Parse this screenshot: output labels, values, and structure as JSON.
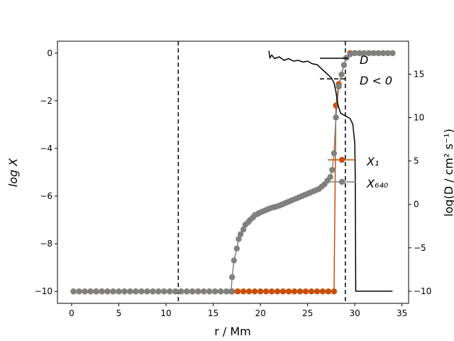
{
  "chart_data": {
    "type": "line",
    "xlabel": "r / Mm",
    "ylabel_left": "log X",
    "ylabel_right": "log(D / cm² s⁻¹)",
    "xlim": [
      -1.5,
      35.7
    ],
    "ylim_left": [
      -10.5,
      0.5
    ],
    "ylim_right": [
      -11.4,
      18.8
    ],
    "x_ticks": [
      0,
      5,
      10,
      15,
      20,
      25,
      30,
      35
    ],
    "y_ticks_left": [
      0,
      -2,
      -4,
      -6,
      -8,
      -10
    ],
    "y_ticks_right": [
      15,
      10,
      5,
      0,
      -5,
      -10
    ],
    "vlines": [
      11.3,
      29.0
    ],
    "colors": {
      "x1": "#c84f0a",
      "x640": "#808080",
      "d": "#000000"
    },
    "legend": {
      "D": "D",
      "Dneg": "D < 0",
      "X1": "X₁",
      "X640": "X₆₄₀"
    },
    "series": [
      {
        "name": "X₁",
        "axis": "left",
        "color": "#c84f0a",
        "points": [
          [
            0.2,
            -10
          ],
          [
            0.8,
            -10
          ],
          [
            1.4,
            -10
          ],
          [
            2.0,
            -10
          ],
          [
            2.6,
            -10
          ],
          [
            3.2,
            -10
          ],
          [
            3.8,
            -10
          ],
          [
            4.4,
            -10
          ],
          [
            5.0,
            -10
          ],
          [
            5.6,
            -10
          ],
          [
            6.2,
            -10
          ],
          [
            6.8,
            -10
          ],
          [
            7.4,
            -10
          ],
          [
            8.0,
            -10
          ],
          [
            8.6,
            -10
          ],
          [
            9.2,
            -10
          ],
          [
            9.8,
            -10
          ],
          [
            10.4,
            -10
          ],
          [
            11.0,
            -10
          ],
          [
            11.6,
            -10
          ],
          [
            12.2,
            -10
          ],
          [
            12.8,
            -10
          ],
          [
            13.4,
            -10
          ],
          [
            14.0,
            -10
          ],
          [
            14.6,
            -10
          ],
          [
            15.2,
            -10
          ],
          [
            15.8,
            -10
          ],
          [
            16.4,
            -10
          ],
          [
            17.0,
            -10
          ],
          [
            17.6,
            -10
          ],
          [
            18.2,
            -10
          ],
          [
            18.8,
            -10
          ],
          [
            19.4,
            -10
          ],
          [
            20.0,
            -10
          ],
          [
            20.6,
            -10
          ],
          [
            21.2,
            -10
          ],
          [
            21.8,
            -10
          ],
          [
            22.4,
            -10
          ],
          [
            23.0,
            -10
          ],
          [
            23.6,
            -10
          ],
          [
            24.2,
            -10
          ],
          [
            24.8,
            -10
          ],
          [
            25.4,
            -10
          ],
          [
            26.0,
            -10
          ],
          [
            26.6,
            -10
          ],
          [
            27.2,
            -10
          ],
          [
            27.8,
            -10
          ],
          [
            28.0,
            -2.2
          ],
          [
            28.3,
            -1.3
          ],
          [
            28.6,
            -0.9
          ],
          [
            28.85,
            -0.5
          ],
          [
            29.1,
            -0.2
          ],
          [
            29.5,
            0
          ],
          [
            30.0,
            0
          ],
          [
            30.5,
            0
          ],
          [
            31.0,
            0
          ],
          [
            31.5,
            0
          ],
          [
            32.0,
            0
          ],
          [
            32.5,
            0
          ],
          [
            33.0,
            0
          ],
          [
            33.5,
            0
          ],
          [
            34.0,
            0
          ]
        ]
      },
      {
        "name": "X₆₄₀",
        "axis": "left",
        "color": "#808080",
        "points": [
          [
            0.2,
            -10
          ],
          [
            0.8,
            -10
          ],
          [
            1.4,
            -10
          ],
          [
            2.0,
            -10
          ],
          [
            2.6,
            -10
          ],
          [
            3.2,
            -10
          ],
          [
            3.8,
            -10
          ],
          [
            4.4,
            -10
          ],
          [
            5.0,
            -10
          ],
          [
            5.6,
            -10
          ],
          [
            6.2,
            -10
          ],
          [
            6.8,
            -10
          ],
          [
            7.4,
            -10
          ],
          [
            8.0,
            -10
          ],
          [
            8.6,
            -10
          ],
          [
            9.2,
            -10
          ],
          [
            9.8,
            -10
          ],
          [
            10.4,
            -10
          ],
          [
            11.0,
            -10
          ],
          [
            11.6,
            -10
          ],
          [
            12.2,
            -10
          ],
          [
            12.8,
            -10
          ],
          [
            13.4,
            -10
          ],
          [
            14.0,
            -10
          ],
          [
            14.6,
            -10
          ],
          [
            15.2,
            -10
          ],
          [
            15.8,
            -10
          ],
          [
            16.4,
            -10
          ],
          [
            16.9,
            -10
          ],
          [
            17.0,
            -9.4
          ],
          [
            17.2,
            -8.7
          ],
          [
            17.5,
            -8.2
          ],
          [
            17.7,
            -7.8
          ],
          [
            17.9,
            -7.6
          ],
          [
            18.2,
            -7.4
          ],
          [
            18.4,
            -7.2
          ],
          [
            18.7,
            -7.1
          ],
          [
            18.9,
            -7.0
          ],
          [
            19.2,
            -6.9
          ],
          [
            19.4,
            -6.8
          ],
          [
            19.7,
            -6.75
          ],
          [
            19.9,
            -6.7
          ],
          [
            20.2,
            -6.65
          ],
          [
            20.5,
            -6.6
          ],
          [
            20.8,
            -6.55
          ],
          [
            21.1,
            -6.5
          ],
          [
            21.4,
            -6.47
          ],
          [
            21.7,
            -6.44
          ],
          [
            22.0,
            -6.4
          ],
          [
            22.3,
            -6.35
          ],
          [
            22.6,
            -6.3
          ],
          [
            22.9,
            -6.25
          ],
          [
            23.2,
            -6.2
          ],
          [
            23.5,
            -6.15
          ],
          [
            23.8,
            -6.1
          ],
          [
            24.1,
            -6.05
          ],
          [
            24.4,
            -6.0
          ],
          [
            24.7,
            -5.95
          ],
          [
            25.0,
            -5.9
          ],
          [
            25.3,
            -5.85
          ],
          [
            25.6,
            -5.8
          ],
          [
            25.9,
            -5.75
          ],
          [
            26.2,
            -5.7
          ],
          [
            26.5,
            -5.6
          ],
          [
            26.8,
            -5.5
          ],
          [
            27.1,
            -5.35
          ],
          [
            27.4,
            -5.2
          ],
          [
            27.6,
            -4.9
          ],
          [
            27.8,
            -4.2
          ],
          [
            28.0,
            -2.7
          ],
          [
            28.3,
            -1.4
          ],
          [
            28.6,
            -0.9
          ],
          [
            28.85,
            -0.5
          ],
          [
            29.1,
            -0.2
          ],
          [
            29.5,
            -0.05
          ],
          [
            30.0,
            0
          ],
          [
            30.5,
            0
          ],
          [
            31.0,
            0
          ],
          [
            31.5,
            0
          ],
          [
            32.0,
            0
          ],
          [
            32.5,
            0
          ],
          [
            33.0,
            0
          ],
          [
            33.5,
            0
          ],
          [
            34.0,
            0
          ]
        ]
      },
      {
        "name": "D",
        "axis": "right",
        "color": "#000000",
        "points": [
          [
            20.9,
            17.7
          ],
          [
            21.0,
            16.9
          ],
          [
            21.2,
            17.2
          ],
          [
            21.5,
            16.8
          ],
          [
            22.0,
            17.0
          ],
          [
            22.5,
            16.6
          ],
          [
            23.0,
            16.8
          ],
          [
            23.5,
            16.5
          ],
          [
            24.0,
            16.6
          ],
          [
            24.5,
            16.4
          ],
          [
            25.0,
            16.5
          ],
          [
            25.5,
            16.2
          ],
          [
            26.0,
            16.1
          ],
          [
            26.5,
            15.6
          ],
          [
            27.0,
            15.1
          ],
          [
            27.5,
            14.6
          ],
          [
            27.8,
            14.0
          ],
          [
            28.0,
            13.0
          ],
          [
            28.2,
            11.5
          ],
          [
            28.5,
            10.5
          ],
          [
            29.0,
            10.2
          ],
          [
            29.5,
            9.9
          ],
          [
            29.8,
            9.2
          ],
          [
            30.0,
            7.0
          ],
          [
            30.05,
            3.0
          ],
          [
            30.1,
            -10.0
          ],
          [
            30.5,
            -10.0
          ],
          [
            31.0,
            -10.0
          ],
          [
            32.0,
            -10.0
          ],
          [
            33.0,
            -10.0
          ],
          [
            34.0,
            -10.0
          ]
        ]
      }
    ]
  }
}
